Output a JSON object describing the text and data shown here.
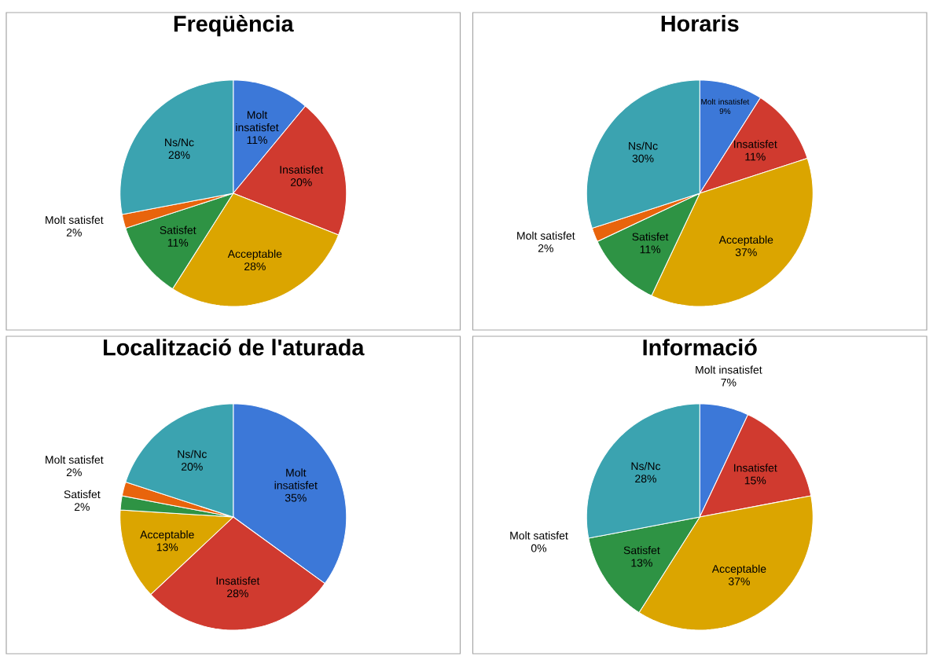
{
  "chart_data": [
    {
      "type": "pie",
      "title": "Freqüència",
      "categories": [
        "Molt insatisfet",
        "Insatisfet",
        "Acceptable",
        "Satisfet",
        "Molt satisfet",
        "Ns/Nc"
      ],
      "values": [
        11,
        20,
        28,
        11,
        2,
        28
      ],
      "value_labels": [
        "11%",
        "20%",
        "28%",
        "11%",
        "2%",
        "28%"
      ],
      "colors": [
        "#3c78d8",
        "#d03a2f",
        "#dba500",
        "#2e9344",
        "#e8640c",
        "#3ba3b0"
      ]
    },
    {
      "type": "pie",
      "title": "Horaris",
      "categories": [
        "Molt insatisfet",
        "Insatisfet",
        "Acceptable",
        "Satisfet",
        "Molt satisfet",
        "Ns/Nc"
      ],
      "values": [
        9,
        11,
        37,
        11,
        2,
        30
      ],
      "value_labels": [
        "9%",
        "11%",
        "37%",
        "11%",
        "2%",
        "30%"
      ],
      "colors": [
        "#3c78d8",
        "#d03a2f",
        "#dba500",
        "#2e9344",
        "#e8640c",
        "#3ba3b0"
      ]
    },
    {
      "type": "pie",
      "title": "Localització de l'aturada",
      "categories": [
        "Molt insatisfet",
        "Insatisfet",
        "Acceptable",
        "Satisfet",
        "Molt satisfet",
        "Ns/Nc"
      ],
      "values": [
        35,
        28,
        13,
        2,
        2,
        20
      ],
      "value_labels": [
        "35%",
        "28%",
        "13%",
        "2%",
        "2%",
        "20%"
      ],
      "colors": [
        "#3c78d8",
        "#d03a2f",
        "#dba500",
        "#2e9344",
        "#e8640c",
        "#3ba3b0"
      ]
    },
    {
      "type": "pie",
      "title": "Informació",
      "categories": [
        "Molt insatisfet",
        "Insatisfet",
        "Acceptable",
        "Satisfet",
        "Molt satisfet",
        "Ns/Nc"
      ],
      "values": [
        7,
        15,
        37,
        13,
        0,
        28
      ],
      "value_labels": [
        "7%",
        "15%",
        "37%",
        "13%",
        "0%",
        "28%"
      ],
      "colors": [
        "#3c78d8",
        "#d03a2f",
        "#dba500",
        "#2e9344",
        "#e8640c",
        "#3ba3b0"
      ]
    }
  ]
}
